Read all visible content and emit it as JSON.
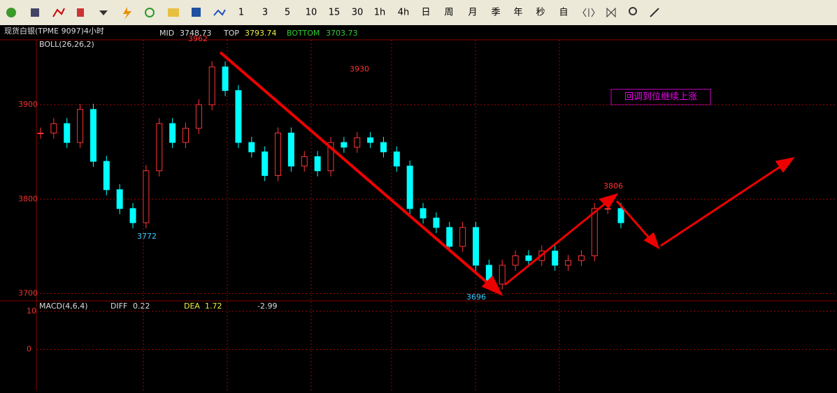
{
  "toolbar": {
    "periods": [
      "1",
      "3",
      "5",
      "10",
      "15",
      "30",
      "1h",
      "4h",
      "日",
      "周",
      "月",
      "季",
      "年",
      "秒",
      "自"
    ]
  },
  "header": {
    "symbol": "现货白银(TPME 9097)4小时",
    "mid_label": "MID",
    "mid": "3748.73",
    "top_label": "TOP",
    "top": "3793.74",
    "bottom_label": "BOTTOM",
    "bottom": "3703.73"
  },
  "chart_data": {
    "type": "candlestick",
    "indicator": "BOLL(26,26,2)",
    "closes": [
      3870,
      3880,
      3860,
      3895,
      3840,
      3810,
      3790,
      3775,
      3830,
      3880,
      3860,
      3875,
      3900,
      3940,
      3915,
      3860,
      3850,
      3825,
      3870,
      3835,
      3845,
      3830,
      3860,
      3855,
      3865,
      3860,
      3850,
      3835,
      3790,
      3780,
      3770,
      3750,
      3770,
      3730,
      3710,
      3730,
      3740,
      3735,
      3745,
      3730,
      3735,
      3740,
      3790,
      3790,
      3775
    ],
    "ylim": [
      3693,
      3968
    ],
    "yticks": [
      3700,
      3800,
      3900
    ],
    "annotations": [
      3962,
      3930,
      3772,
      3696,
      3806
    ],
    "note": "回调到位继续上涨"
  },
  "macd": {
    "indicator": "MACD(4,6,4)",
    "diff_label": "DIFF",
    "diff": "0.22",
    "dea_label": "DEA",
    "dea": "1.72",
    "macd": "-2.99",
    "ylim": [
      -10,
      10
    ],
    "yticks": [
      0,
      10
    ]
  }
}
